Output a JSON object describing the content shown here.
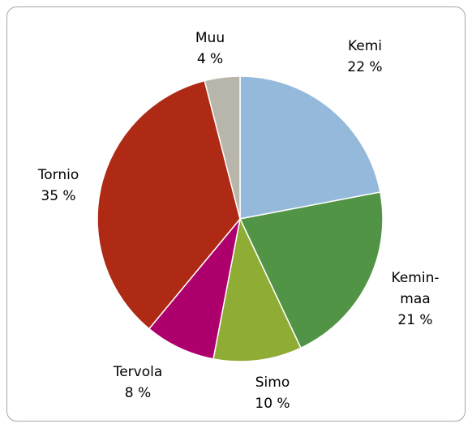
{
  "chart_data": {
    "type": "pie",
    "categories": [
      "Kemi",
      "Kemin-\nmaa",
      "Simo",
      "Tervola",
      "Tornio",
      "Muu"
    ],
    "values": [
      22,
      21,
      10,
      8,
      35,
      4
    ],
    "value_labels": [
      "22 %",
      "21 %",
      "10 %",
      "8 %",
      "35 %",
      "4 %"
    ],
    "colors": [
      "#95b9da",
      "#529446",
      "#8fac35",
      "#ae006c",
      "#ae2a14",
      "#b8b5ab"
    ]
  }
}
